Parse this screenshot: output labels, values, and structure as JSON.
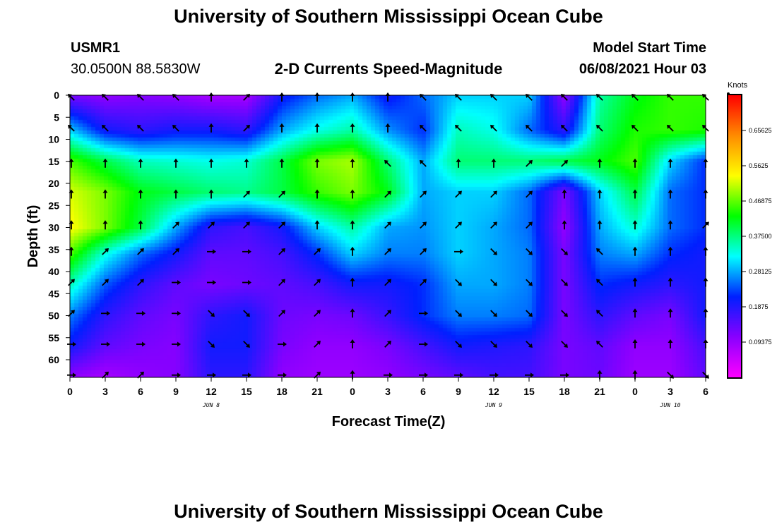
{
  "page": {
    "title_top": "University of Southern Mississippi Ocean Cube",
    "title_bottom": "University of Southern Mississippi Ocean Cube",
    "station_id": "USMR1",
    "station_coords": "30.0500N  88.5830W",
    "plot_subtitle": "2-D Currents Speed-Magnitude",
    "model_start_label": "Model Start Time",
    "model_start_value": "06/08/2021 Hour 03"
  },
  "chart_data": {
    "type": "heatmap",
    "title": "2-D Currents Speed-Magnitude",
    "xlabel": "Forecast Time(Z)",
    "ylabel": "Depth (ft)",
    "x_tick_labels": [
      "0",
      "3",
      "6",
      "9",
      "12",
      "15",
      "18",
      "21",
      "0",
      "3",
      "6",
      "9",
      "12",
      "15",
      "18",
      "21",
      "0",
      "3",
      "6"
    ],
    "x_range_hours": [
      0,
      54
    ],
    "y_ticks": [
      0,
      5,
      10,
      15,
      20,
      25,
      30,
      35,
      40,
      45,
      50,
      55,
      60
    ],
    "y_range": [
      0,
      64
    ],
    "y_inverted": true,
    "date_labels": [
      {
        "text": "JUN 8",
        "hour": 12
      },
      {
        "text": "JUN 9",
        "hour": 36
      },
      {
        "text": "JUN 10",
        "hour": 51
      }
    ],
    "colorbar": {
      "unit": "Knots",
      "labels": [
        "0.65625",
        "0.5625",
        "0.46875",
        "0.37500",
        "0.28125",
        "0.1875",
        "0.09375"
      ],
      "range": [
        0,
        0.75
      ],
      "colors": [
        "#ff00ff",
        "#8a00ff",
        "#0020ff",
        "#00ffff",
        "#00ff00",
        "#ffff00",
        "#ff8c00",
        "#ff0000"
      ]
    },
    "speed_grid": {
      "hours": [
        0,
        3,
        6,
        9,
        12,
        15,
        18,
        21,
        24,
        27,
        30,
        33,
        36,
        39,
        42,
        45,
        48,
        51,
        54
      ],
      "depths": [
        0,
        8,
        15,
        22,
        30,
        36,
        43,
        50,
        57,
        64
      ],
      "values": [
        [
          0.12,
          0.1,
          0.11,
          0.1,
          0.08,
          0.08,
          0.2,
          0.25,
          0.28,
          0.2,
          0.25,
          0.3,
          0.3,
          0.3,
          0.1,
          0.36,
          0.42,
          0.45,
          0.45
        ],
        [
          0.3,
          0.2,
          0.18,
          0.2,
          0.2,
          0.18,
          0.28,
          0.33,
          0.36,
          0.27,
          0.22,
          0.35,
          0.33,
          0.25,
          0.18,
          0.38,
          0.44,
          0.45,
          0.44
        ],
        [
          0.46,
          0.4,
          0.35,
          0.34,
          0.33,
          0.34,
          0.4,
          0.48,
          0.5,
          0.38,
          0.28,
          0.38,
          0.38,
          0.38,
          0.4,
          0.42,
          0.46,
          0.3,
          0.22
        ],
        [
          0.52,
          0.48,
          0.42,
          0.4,
          0.38,
          0.37,
          0.4,
          0.45,
          0.48,
          0.42,
          0.28,
          0.3,
          0.3,
          0.25,
          0.12,
          0.3,
          0.4,
          0.25,
          0.22
        ],
        [
          0.54,
          0.48,
          0.4,
          0.28,
          0.18,
          0.16,
          0.2,
          0.3,
          0.36,
          0.28,
          0.27,
          0.3,
          0.28,
          0.25,
          0.1,
          0.28,
          0.34,
          0.25,
          0.22
        ],
        [
          0.46,
          0.33,
          0.25,
          0.2,
          0.14,
          0.14,
          0.16,
          0.22,
          0.3,
          0.26,
          0.26,
          0.3,
          0.28,
          0.26,
          0.12,
          0.26,
          0.28,
          0.22,
          0.2
        ],
        [
          0.35,
          0.24,
          0.18,
          0.14,
          0.12,
          0.13,
          0.14,
          0.16,
          0.2,
          0.2,
          0.22,
          0.28,
          0.28,
          0.26,
          0.12,
          0.22,
          0.2,
          0.18,
          0.2
        ],
        [
          0.26,
          0.18,
          0.14,
          0.12,
          0.18,
          0.2,
          0.13,
          0.12,
          0.13,
          0.17,
          0.22,
          0.26,
          0.26,
          0.25,
          0.12,
          0.18,
          0.14,
          0.12,
          0.2
        ],
        [
          0.2,
          0.14,
          0.12,
          0.11,
          0.2,
          0.2,
          0.12,
          0.1,
          0.1,
          0.12,
          0.16,
          0.2,
          0.19,
          0.18,
          0.12,
          0.14,
          0.1,
          0.1,
          0.16
        ],
        [
          0.1,
          0.08,
          0.1,
          0.11,
          0.18,
          0.18,
          0.1,
          0.09,
          0.09,
          0.1,
          0.12,
          0.14,
          0.16,
          0.16,
          0.12,
          0.13,
          0.09,
          0.09,
          0.14
        ]
      ]
    },
    "current_vectors": {
      "hours": [
        0,
        3,
        6,
        9,
        12,
        15,
        18,
        21,
        24,
        27,
        30,
        33,
        36,
        39,
        42,
        45,
        48,
        51,
        54
      ],
      "depths": [
        0,
        7,
        15,
        22,
        29,
        35,
        42,
        49,
        56,
        63
      ],
      "direction_deg": [
        [
          135,
          135,
          135,
          135,
          180,
          225,
          180,
          180,
          180,
          180,
          135,
          135,
          135,
          135,
          135,
          135,
          135,
          135,
          135
        ],
        [
          135,
          135,
          135,
          135,
          180,
          225,
          180,
          180,
          180,
          180,
          135,
          135,
          135,
          135,
          135,
          135,
          135,
          135,
          135
        ],
        [
          180,
          180,
          180,
          180,
          180,
          180,
          180,
          180,
          180,
          135,
          135,
          180,
          180,
          225,
          225,
          180,
          180,
          180,
          180
        ],
        [
          180,
          180,
          180,
          180,
          180,
          225,
          225,
          180,
          180,
          225,
          225,
          225,
          225,
          225,
          180,
          180,
          180,
          180,
          180
        ],
        [
          180,
          180,
          180,
          225,
          225,
          225,
          225,
          180,
          180,
          225,
          225,
          225,
          225,
          225,
          180,
          180,
          180,
          180,
          225
        ],
        [
          180,
          225,
          225,
          225,
          270,
          270,
          225,
          225,
          180,
          225,
          225,
          270,
          315,
          315,
          315,
          135,
          180,
          180,
          180
        ],
        [
          225,
          225,
          225,
          270,
          270,
          270,
          225,
          225,
          180,
          225,
          225,
          315,
          315,
          315,
          315,
          135,
          180,
          180,
          180
        ],
        [
          225,
          270,
          270,
          270,
          315,
          315,
          225,
          225,
          180,
          225,
          270,
          315,
          315,
          315,
          315,
          135,
          180,
          180,
          180
        ],
        [
          270,
          270,
          270,
          270,
          315,
          315,
          270,
          225,
          180,
          225,
          270,
          315,
          315,
          315,
          315,
          135,
          180,
          180,
          180
        ],
        [
          270,
          225,
          225,
          270,
          270,
          270,
          270,
          225,
          180,
          270,
          270,
          270,
          270,
          270,
          270,
          180,
          180,
          315,
          315
        ]
      ]
    }
  }
}
